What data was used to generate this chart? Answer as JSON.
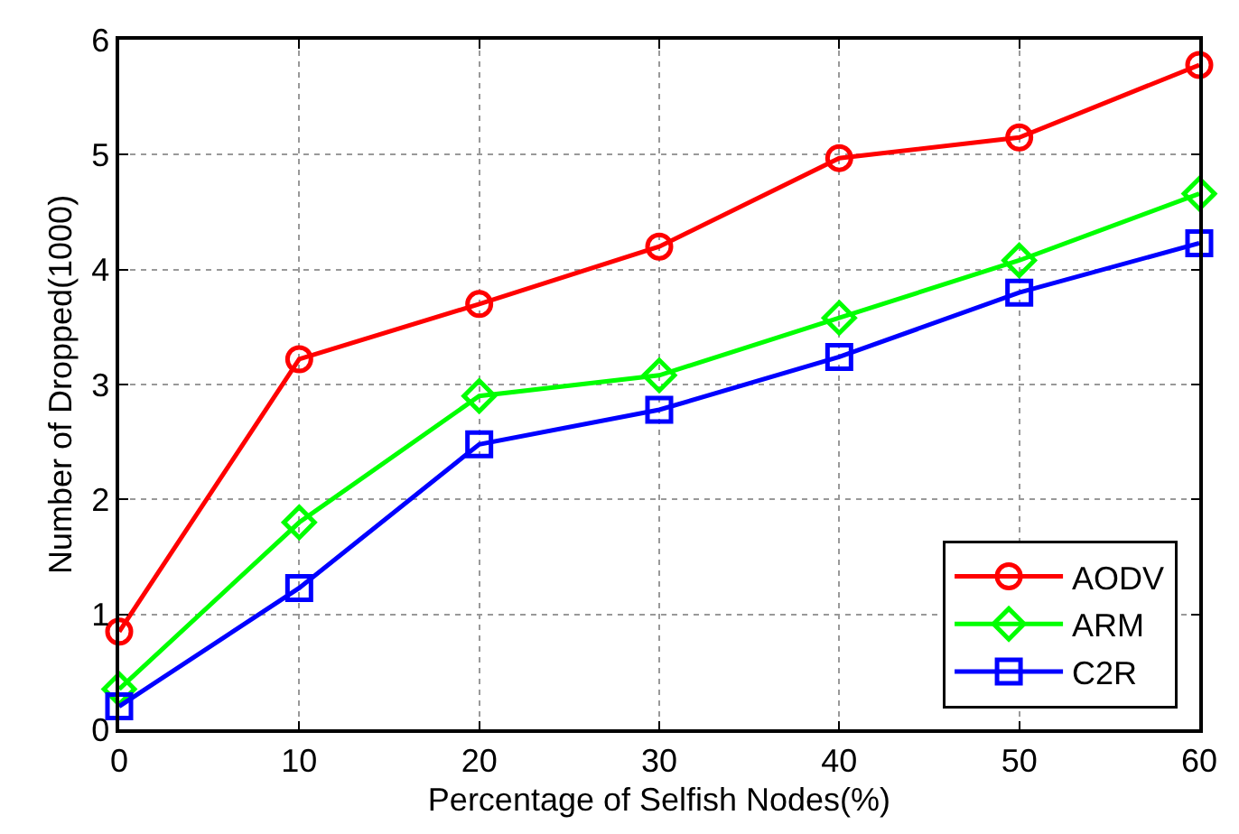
{
  "chart_data": {
    "type": "line",
    "xlabel": "Percentage of Selfish Nodes(%)",
    "ylabel": "Number of Dropped(1000)",
    "x": [
      0,
      10,
      20,
      30,
      40,
      50,
      60
    ],
    "series": [
      {
        "name": "AODV",
        "color": "#ff0000",
        "marker": "circle",
        "values": [
          0.85,
          3.22,
          3.7,
          4.2,
          4.97,
          5.15,
          5.78
        ]
      },
      {
        "name": "ARM",
        "color": "#00ff00",
        "marker": "diamond",
        "values": [
          0.35,
          1.8,
          2.9,
          3.08,
          3.58,
          4.08,
          4.66
        ]
      },
      {
        "name": "C2R",
        "color": "#0000ff",
        "marker": "square",
        "values": [
          0.2,
          1.23,
          2.48,
          2.78,
          3.24,
          3.8,
          4.23
        ]
      }
    ],
    "xlim": [
      0,
      60
    ],
    "xticks": [
      0,
      10,
      20,
      30,
      40,
      50,
      60
    ],
    "ylim": [
      0,
      6
    ],
    "yticks": [
      0,
      1,
      2,
      3,
      4,
      5,
      6
    ],
    "grid": true,
    "legend": "bottom right",
    "line_style": "solid"
  }
}
